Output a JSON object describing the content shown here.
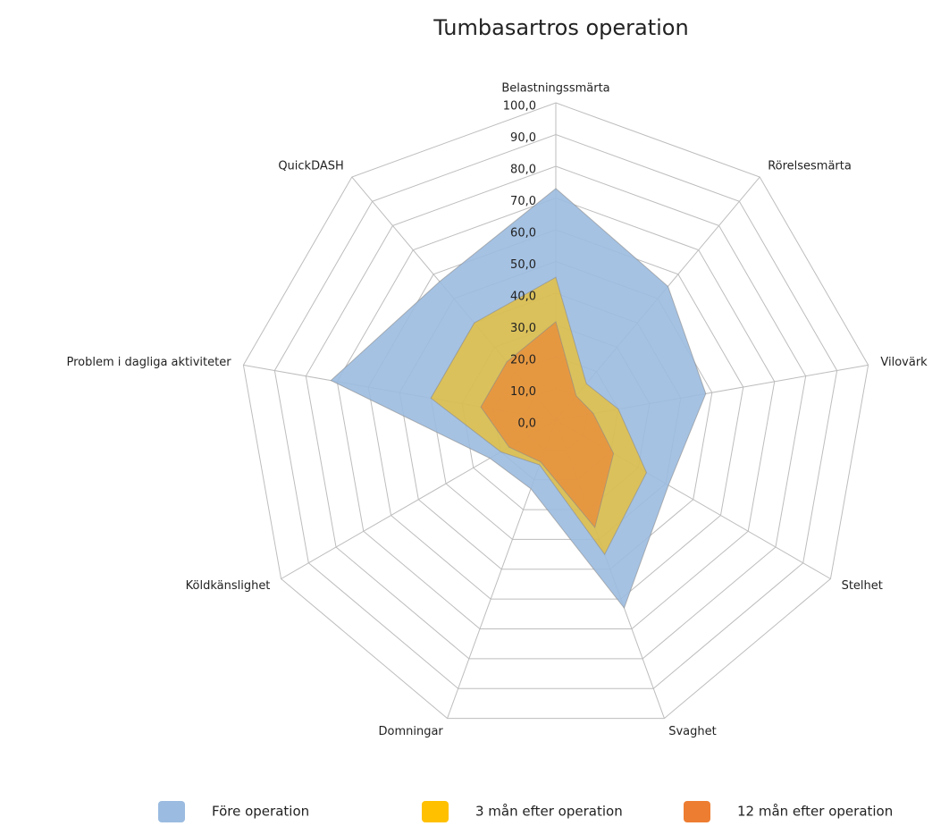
{
  "chart_data": {
    "type": "radar",
    "title": "Tumbasartros operation",
    "categories": [
      "Belastningssmärta",
      "Rörelsesmärta",
      "Vilovärk",
      "Stelhet",
      "Svaghet",
      "Domningar",
      "Köldkänslighet",
      "Problem i dagliga aktiviteter",
      "QuickDASH"
    ],
    "series": [
      {
        "name": "Före operation",
        "color": "#9bbbe0",
        "values": [
          73,
          55,
          48,
          41,
          63,
          23,
          24,
          72,
          57
        ]
      },
      {
        "name": "3 mån efter operation",
        "color": "#ffc000",
        "values": [
          45,
          15,
          20,
          33,
          45,
          15,
          20,
          40,
          40
        ]
      },
      {
        "name": "12 mån efter operation",
        "color": "#ed7d31",
        "values": [
          31,
          10,
          12,
          21,
          36,
          14,
          17,
          24,
          24
        ]
      }
    ],
    "ylim": [
      0,
      100
    ],
    "yticks": [
      {
        "value": 0,
        "label": "0,0"
      },
      {
        "value": 10,
        "label": "10,0"
      },
      {
        "value": 20,
        "label": "20,0"
      },
      {
        "value": 30,
        "label": "30,0"
      },
      {
        "value": 40,
        "label": "40,0"
      },
      {
        "value": 50,
        "label": "50,0"
      },
      {
        "value": 60,
        "label": "60,0"
      },
      {
        "value": 70,
        "label": "70,0"
      },
      {
        "value": 80,
        "label": "80,0"
      },
      {
        "value": 90,
        "label": "90,0"
      },
      {
        "value": 100,
        "label": "100,0"
      }
    ],
    "grid": true,
    "legend": "bottom"
  }
}
